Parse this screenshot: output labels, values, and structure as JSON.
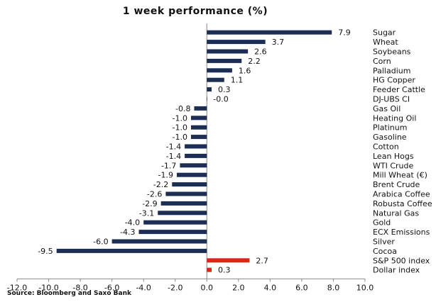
{
  "chart_data": {
    "type": "bar",
    "orientation": "horizontal",
    "title": "1 week performance (%)",
    "source": "Source: Bloomberg and Saxo Bank",
    "xlim": [
      -12.0,
      10.0
    ],
    "xticks": [
      "-12.0",
      "-10.0",
      "-8.0",
      "-6.0",
      "-4.0",
      "-2.0",
      "0.0",
      "2.0",
      "4.0",
      "6.0",
      "8.0",
      "10.0"
    ],
    "xtick_values": [
      -12,
      -10,
      -8,
      -6,
      -4,
      -2,
      0,
      2,
      4,
      6,
      8,
      10
    ],
    "grid": false,
    "colors": {
      "commodity": "#1c2e54",
      "benchmark": "#e2231a"
    },
    "categories": [
      "Sugar",
      "Wheat",
      "Soybeans",
      "Corn",
      "Palladium",
      "HG Copper",
      "Feeder Cattle",
      "DJ-UBS CI",
      "Gas Oil",
      "Heating Oil",
      "Platinum",
      "Gasoline",
      "Cotton",
      "Lean Hogs",
      "WTI Crude",
      "Mill Wheat (€)",
      "Brent Crude",
      "Arabica Coffee",
      "Robusta Coffee",
      "Natural Gas",
      "Gold",
      "ECX Emissions",
      "Silver",
      "Cocoa",
      "S&P 500 index",
      "Dollar index"
    ],
    "values": [
      7.9,
      3.7,
      2.6,
      2.2,
      1.6,
      1.1,
      0.3,
      -0.0,
      -0.8,
      -1.0,
      -1.0,
      -1.0,
      -1.4,
      -1.4,
      -1.7,
      -1.9,
      -2.2,
      -2.6,
      -2.9,
      -3.1,
      -4.0,
      -4.3,
      -6.0,
      -9.5,
      2.7,
      0.3
    ],
    "value_labels": [
      "7.9",
      "3.7",
      "2.6",
      "2.2",
      "1.6",
      "1.1",
      "0.3",
      "-0.0",
      "-0.8",
      "-1.0",
      "-1.0",
      "-1.0",
      "-1.4",
      "-1.4",
      "-1.7",
      "-1.9",
      "-2.2",
      "-2.6",
      "-2.9",
      "-3.1",
      "-4.0",
      "-4.3",
      "-6.0",
      "-9.5",
      "2.7",
      "0.3"
    ],
    "groups": [
      "commodity",
      "commodity",
      "commodity",
      "commodity",
      "commodity",
      "commodity",
      "commodity",
      "commodity",
      "commodity",
      "commodity",
      "commodity",
      "commodity",
      "commodity",
      "commodity",
      "commodity",
      "commodity",
      "commodity",
      "commodity",
      "commodity",
      "commodity",
      "commodity",
      "commodity",
      "commodity",
      "commodity",
      "benchmark",
      "benchmark"
    ]
  }
}
